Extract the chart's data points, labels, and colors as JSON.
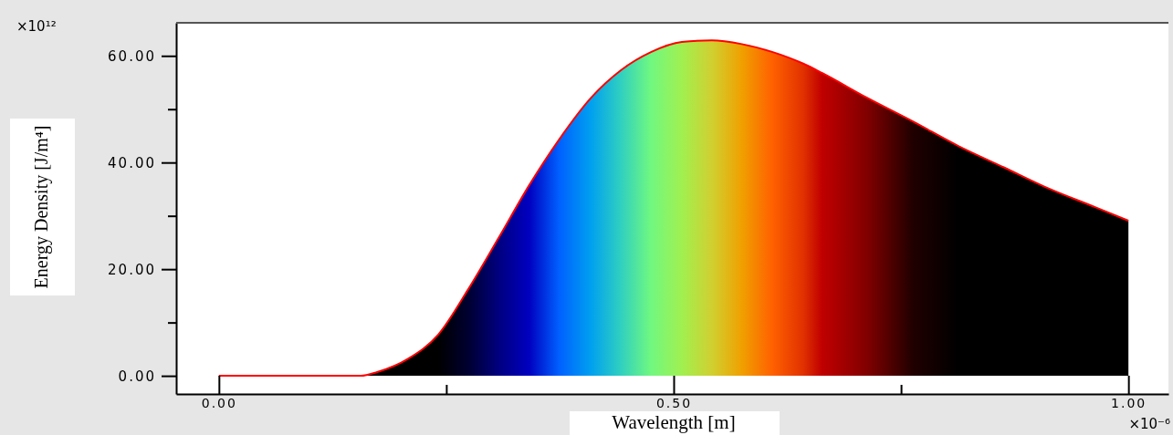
{
  "chart_data": {
    "type": "area",
    "xlabel": "Wavelength [m]",
    "ylabel": "Energy Density [J/m⁴]",
    "annotations": [
      "×10¹²",
      "×10⁻⁶"
    ],
    "xlim": [
      -0.047,
      1.044
    ],
    "ylim": [
      -3.4,
      66.2
    ],
    "xticks": [
      {
        "value": 0,
        "label": "0.00"
      },
      {
        "value": 0.25,
        "label": null
      },
      {
        "value": 0.5,
        "label": "0.50"
      },
      {
        "value": 0.75,
        "label": null
      },
      {
        "value": 1,
        "label": "1.00"
      }
    ],
    "yticks": [
      {
        "value": 0,
        "label": "0.00"
      },
      {
        "value": 10,
        "label": null
      },
      {
        "value": 20,
        "label": "20.00"
      },
      {
        "value": 30,
        "label": null
      },
      {
        "value": 40,
        "label": "40.00"
      },
      {
        "value": 50,
        "label": null
      },
      {
        "value": 60,
        "label": "60.00"
      }
    ],
    "grid": false,
    "marker": "none",
    "line_style": "solid",
    "series": [
      {
        "color": "#ff0000",
        "x": [
          0,
          0.1,
          0.156,
          0.174,
          0.208,
          0.241,
          0.274,
          0.308,
          0.341,
          0.374,
          0.409,
          0.442,
          0.475,
          0.509,
          0.542,
          0.575,
          0.609,
          0.643,
          0.663,
          0.713,
          0.763,
          0.813,
          0.863,
          0.914,
          0.964,
          1.0
        ],
        "values": [
          0,
          0,
          0,
          0.7,
          3.2,
          7.7,
          16.2,
          26,
          35.7,
          44.3,
          52.1,
          57.3,
          60.7,
          62.6,
          62.9,
          62.2,
          60.7,
          58.5,
          56.8,
          52.1,
          47.7,
          43.1,
          39.1,
          35,
          31.6,
          29.1
        ],
        "colors": [
          "#000000",
          "#000000",
          "#000000",
          "#000000",
          "#000000",
          "#000000",
          "#000030",
          "#000080",
          "#0000c0",
          "#0060ff",
          "#00a0f0",
          "#30d0c0",
          "#70f880",
          "#a0f050",
          "#d0d030",
          "#f0a000",
          "#ff6000",
          "#e03000",
          "#c00000",
          "#800000",
          "#200000",
          "#000000",
          "#000000",
          "#000000",
          "#000000",
          "#000000"
        ]
      }
    ]
  }
}
